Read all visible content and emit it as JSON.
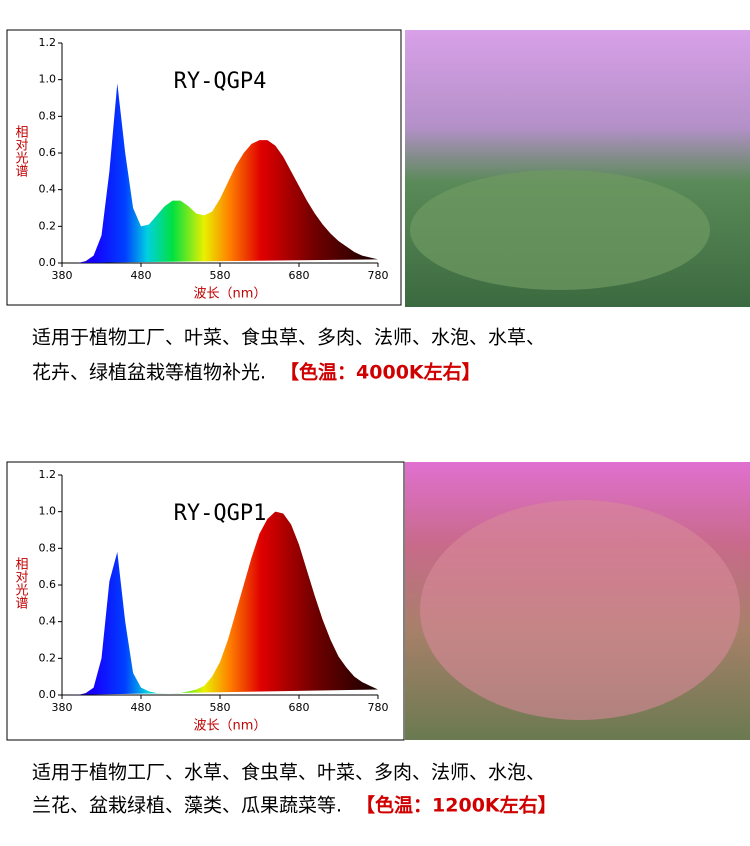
{
  "chart_data": [
    {
      "type": "area",
      "title": "RY-QGP4",
      "y_label": "相对光谱",
      "x_label": "波长（nm）",
      "x": [
        380,
        390,
        400,
        410,
        420,
        430,
        440,
        450,
        460,
        470,
        480,
        490,
        500,
        510,
        520,
        530,
        540,
        550,
        560,
        570,
        580,
        590,
        600,
        610,
        620,
        630,
        640,
        650,
        660,
        670,
        680,
        690,
        700,
        710,
        720,
        730,
        740,
        750,
        760,
        770,
        780
      ],
      "values": [
        0,
        0,
        0,
        0.01,
        0.04,
        0.15,
        0.5,
        0.98,
        0.6,
        0.3,
        0.2,
        0.21,
        0.26,
        0.31,
        0.34,
        0.34,
        0.31,
        0.27,
        0.26,
        0.28,
        0.35,
        0.44,
        0.53,
        0.6,
        0.65,
        0.67,
        0.67,
        0.64,
        0.58,
        0.5,
        0.42,
        0.34,
        0.27,
        0.21,
        0.16,
        0.12,
        0.09,
        0.06,
        0.04,
        0.03,
        0.02
      ],
      "xlim": [
        380,
        780
      ],
      "xticks": [
        380,
        480,
        580,
        680,
        780
      ],
      "ylim": [
        0,
        1.2
      ],
      "yticks": [
        {
          "value": 0,
          "label": "0.0"
        },
        0.2,
        0.4,
        0.6,
        0.8,
        {
          "value": 1,
          "label": "1.0"
        },
        1.2
      ]
    },
    {
      "type": "area",
      "title": "RY-QGP1",
      "y_label": "相对光谱",
      "x_label": "波长（nm）",
      "x": [
        380,
        390,
        400,
        410,
        420,
        430,
        440,
        450,
        460,
        470,
        480,
        490,
        500,
        510,
        520,
        530,
        540,
        550,
        560,
        570,
        580,
        590,
        600,
        610,
        620,
        630,
        640,
        650,
        660,
        670,
        680,
        690,
        700,
        710,
        720,
        730,
        740,
        750,
        760,
        770,
        780
      ],
      "values": [
        0,
        0,
        0,
        0.01,
        0.04,
        0.2,
        0.62,
        0.78,
        0.4,
        0.12,
        0.04,
        0.02,
        0.01,
        0.01,
        0.01,
        0.01,
        0.02,
        0.03,
        0.05,
        0.1,
        0.18,
        0.3,
        0.45,
        0.6,
        0.75,
        0.88,
        0.96,
        1.0,
        0.99,
        0.93,
        0.82,
        0.68,
        0.54,
        0.41,
        0.3,
        0.21,
        0.15,
        0.1,
        0.07,
        0.05,
        0.03
      ],
      "xlim": [
        380,
        780
      ],
      "xticks": [
        380,
        480,
        580,
        680,
        780
      ],
      "ylim": [
        0,
        1.2
      ],
      "yticks": [
        {
          "value": 0,
          "label": "0.0"
        },
        0.2,
        0.4,
        0.6,
        0.8,
        {
          "value": 1,
          "label": "1.0"
        },
        1.2
      ]
    }
  ],
  "captions": [
    {
      "lines": [
        "适用于植物工厂、叶菜、食虫草、多肉、法师、水泡、水草、",
        "花卉、绿植盆栽等植物补光."
      ],
      "note": "【色温：4000K左右】"
    },
    {
      "lines": [
        "适用于植物工厂、水草、食虫草、叶菜、多肉、法师、水泡、",
        "兰花、盆栽绿植、藻类、瓜果蔬菜等."
      ],
      "note": "【色温：1200K左右】"
    }
  ]
}
